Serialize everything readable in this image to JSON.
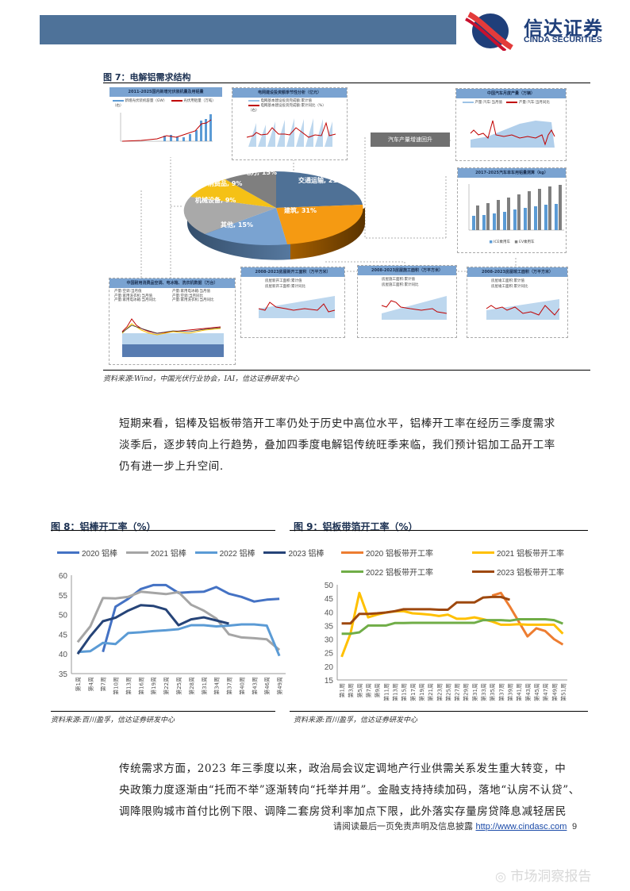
{
  "header": {
    "brand_cn": "信达证券",
    "brand_en": "CINDA SECURITIES",
    "bar_color": "#4e7299"
  },
  "figure7": {
    "title": "图 7：电解铝需求结构",
    "source": "资料来源:Wind，中国光伏行业协会，IAI，信达证券研发中心",
    "callout": "汽车产量增速回升",
    "mini_charts": [
      {
        "title": "2011-2025国内新增光伏装机量及用铝量",
        "legend": [
          "新增光伏装机容量（GW）",
          "光伏用铝量（万吨）（右）"
        ],
        "y_left": [
          "250",
          "200",
          "150",
          "100",
          "50",
          "0"
        ],
        "y_right": [
          "400",
          "300",
          "200",
          "100",
          "0"
        ]
      },
      {
        "title": "电网建设投资额季节性分析（亿元）",
        "legend": [
          "电网基本建设投资完成额:累计值",
          "电网基本建设投资完成额:累计同比（%）（右）"
        ],
        "y_left": [
          "6,000",
          "4,000",
          "2,000",
          "0"
        ],
        "y_right": [
          "100",
          "50",
          "0",
          "-50"
        ]
      },
      {
        "title": "中国汽车月度产量（万辆）",
        "legend": [
          "产量:汽车:当月值",
          "产量:汽车:当月同比"
        ],
        "y_left": [
          "350",
          "300",
          "250",
          "200",
          "150",
          "100",
          "50",
          "0"
        ],
        "y_right": [
          "200",
          "150",
          "100",
          "50",
          "0",
          "-50",
          "-100"
        ],
        "x": [
          "2005-10",
          "2009-10",
          "2013-10",
          "2017-10",
          "2021-10"
        ]
      },
      {
        "title": "2017-2025汽车单车用铝量测算（kg）",
        "legend": [
          "ICE乘用车",
          "EV乘用车"
        ],
        "categories": [
          "2017",
          "2018",
          "2019",
          "2020",
          "2021E",
          "2022E",
          "2023E",
          "2024E",
          "2025E"
        ],
        "y_left": [
          "200",
          "150",
          "100",
          "50",
          "0"
        ]
      },
      {
        "title": "中国耐用消费品空调、电冰箱、洗衣机数据（万台）",
        "legend": [
          "产量:空调:当月值",
          "产量:家用电冰箱:当月值",
          "产量:家用洗衣机:当月值",
          "产量:空调:当月同比",
          "产量:家用电冰箱:当月同比",
          "产量:家用洗衣机:当月同比"
        ],
        "y_left": [
          "4,000",
          "3,000",
          "2,000",
          "1,000",
          "0"
        ],
        "y_right": [
          "120",
          "100",
          "80",
          "60",
          "40",
          "20",
          "0",
          "-20",
          "-40",
          "-60",
          "-80"
        ],
        "x": [
          "2006-10",
          "2014-10",
          "2020-10"
        ]
      },
      {
        "title": "2008-2023房屋新开工面积（万平方米）",
        "legend": [
          "房屋新开工面积:累计值",
          "房屋新开工面积:累计同比"
        ],
        "y_left": [
          "250,000",
          "200,000",
          "150,000",
          "100,000",
          "50,000",
          "0"
        ],
        "y_right": [
          "200",
          "150",
          "100",
          "50",
          "0",
          "-50"
        ]
      },
      {
        "title": "2008-2023房屋施工面积（万平方米）",
        "legend": [
          "房屋施工面积:累计值",
          "房屋施工面积:累计同比"
        ],
        "y_left": [
          "1,200,000",
          "1,000,000",
          "800,000",
          "600,000",
          "400,000",
          "200,000",
          "0"
        ],
        "y_right": [
          "60",
          "30",
          "0",
          "-30"
        ]
      },
      {
        "title": "2008-2023房屋竣工面积（万平方米）",
        "legend": [
          "房屋竣工面积:累计值",
          "房屋竣工面积:累计同比"
        ],
        "y_left": [
          "120,000",
          "100,000",
          "80,000",
          "60,000",
          "40,000",
          "20,000",
          "0"
        ],
        "y_right": [
          "80",
          "60",
          "40",
          "20",
          "0",
          "-20",
          "-40"
        ]
      }
    ],
    "pie": [
      {
        "label": "交通运输, 21%",
        "value": 21,
        "color": "#4f7196"
      },
      {
        "label": "建筑, 31%",
        "value": 31,
        "color": "#f59a12"
      },
      {
        "label": "其他, 15%",
        "value": 15,
        "color": "#7aa3d1"
      },
      {
        "label": "机械设备, 9%",
        "value": 9,
        "color": "#a9a9a9"
      },
      {
        "label": "消费品, 9%",
        "value": 9,
        "color": "#f5c116"
      },
      {
        "label": "电力, 15%",
        "value": 15,
        "color": "#7f7f7f"
      }
    ]
  },
  "paragraph1": {
    "lines": [
      "短期来看，铝棒及铝板带箔开工率仍处于历史中高位水平，铝棒开工率在经历三季度需求",
      "淡季后，逐步转向上行趋势，叠加四季度电解铝传统旺季来临，我们预计铝加工品开工率",
      "仍有进一步上升空间."
    ]
  },
  "figure8": {
    "title": "图 8：铝棒开工率（%）",
    "source": "资料来源:百川盈孚，信达证券研发中心"
  },
  "figure9": {
    "title": "图 9：铝板带箔开工率（%）",
    "source": "资料来源:百川盈孚，信达证券研发中心"
  },
  "chart_data": [
    {
      "type": "pie",
      "title": "电解铝需求结构",
      "categories": [
        "交通运输",
        "建筑",
        "其他",
        "机械设备",
        "消费品",
        "电力"
      ],
      "values": [
        21,
        31,
        15,
        9,
        9,
        15
      ]
    },
    {
      "type": "line",
      "title": "铝棒开工率（%）",
      "xlabel": "",
      "ylabel": "",
      "ylim": [
        35,
        60
      ],
      "yticks": [
        35,
        40,
        45,
        50,
        55,
        60
      ],
      "categories": [
        "第1周",
        "第4周",
        "第7周",
        "第10周",
        "第13周",
        "第16周",
        "第19周",
        "第22周",
        "第25周",
        "第28周",
        "第31周",
        "第34周",
        "第37周",
        "第40周",
        "第43周",
        "第46周",
        "第49周"
      ],
      "series": [
        {
          "name": "2020 铝棒",
          "color": "#4472c4",
          "values": [
            null,
            null,
            40.5,
            52,
            54,
            56.5,
            57.5,
            57.5,
            55.5,
            55.7,
            55.8,
            57,
            55.3,
            54.5,
            53.3,
            53.8,
            54
          ]
        },
        {
          "name": "2021 铝棒",
          "color": "#a5a5a5",
          "values": [
            43,
            47,
            54.2,
            54.1,
            54.5,
            55.8,
            55.5,
            55.2,
            55.7,
            52.5,
            51,
            49,
            45,
            44.2,
            44,
            43.7,
            41
          ]
        },
        {
          "name": "2022 铝棒",
          "color": "#5b9bd5",
          "values": [
            40.5,
            40.7,
            42.8,
            42.5,
            45.3,
            45.5,
            45.8,
            46,
            46.3,
            47.3,
            47.3,
            47,
            47.2,
            47.5,
            47.5,
            47.2,
            39.5
          ]
        },
        {
          "name": "2023 铝棒",
          "color": "#264478",
          "values": [
            40,
            44.5,
            48.3,
            49.2,
            51,
            52.4,
            52.2,
            51.3,
            47.3,
            48.8,
            49.3,
            48.5,
            47.7,
            null,
            null,
            null,
            null
          ]
        }
      ]
    },
    {
      "type": "line",
      "title": "铝板带箔开工率（%）",
      "xlabel": "",
      "ylabel": "",
      "ylim": [
        15,
        50
      ],
      "yticks": [
        15,
        20,
        25,
        30,
        35,
        40,
        45,
        50
      ],
      "categories": [
        "第1周",
        "第3周",
        "第5周",
        "第7周",
        "第9周",
        "第11周",
        "第13周",
        "第15周",
        "第17周",
        "第19周",
        "第21周",
        "第23周",
        "第25周",
        "第27周",
        "第29周",
        "第31周",
        "第33周",
        "第35周",
        "第37周",
        "第39周",
        "第41周",
        "第43周",
        "第45周",
        "第47周",
        "第49周",
        "第51周"
      ],
      "series": [
        {
          "name": "2020 铝板带开工率",
          "color": "#ed7d31",
          "values": [
            null,
            null,
            null,
            null,
            null,
            null,
            null,
            null,
            null,
            null,
            null,
            null,
            null,
            null,
            null,
            null,
            null,
            46,
            47,
            42,
            36.5,
            31,
            34,
            33,
            30,
            28
          ]
        },
        {
          "name": "2021 铝板带开工率",
          "color": "#ffc000",
          "values": [
            23.5,
            32,
            47,
            38,
            39,
            39.8,
            40.2,
            40.3,
            39.5,
            39.3,
            39,
            38.5,
            39,
            37.5,
            37.5,
            38,
            37.3,
            36.5,
            35.3,
            35.3,
            35.5,
            35.3,
            35.3,
            35.3,
            35.3,
            32
          ]
        },
        {
          "name": "2022 铝板带开工率",
          "color": "#70ad47",
          "values": [
            32,
            32,
            32.5,
            35,
            35,
            35,
            35.9,
            35.9,
            36,
            36,
            36,
            36,
            36,
            36,
            36,
            36,
            37,
            37,
            37,
            36.8,
            37.3,
            37.3,
            37.3,
            37.3,
            37,
            35.7
          ]
        },
        {
          "name": "2023 铝板带开工率",
          "color": "#9e480e",
          "values": [
            35.8,
            35.8,
            39.3,
            39.3,
            39.5,
            39.8,
            40.3,
            41,
            41,
            41,
            41,
            40.8,
            40.8,
            43.5,
            43.5,
            43.5,
            45.3,
            45.5,
            45.5,
            44.5,
            null,
            null,
            null,
            null,
            null,
            null
          ]
        }
      ]
    }
  ],
  "paragraph2": {
    "lines": [
      "传统需求方面，2023 年三季度以来，政治局会议定调地产行业供需关系发生重大转变，中",
      "央政策力度逐渐由“托而不举”逐渐转向“托举并用”。金融支持持续加码，落地“认房不认贷”、",
      "调降限购城市首付比例下限、调降二套房贷利率加点下限，此外落实存量房贷降息减轻居民"
    ]
  },
  "footer": {
    "disclaimer": "请阅读最后一页免责声明及信息披露",
    "url": "http://www.cindasc.com",
    "page": "9"
  },
  "watermark": {
    "text": "市场洞察报告",
    "icon": "weibo-icon"
  }
}
